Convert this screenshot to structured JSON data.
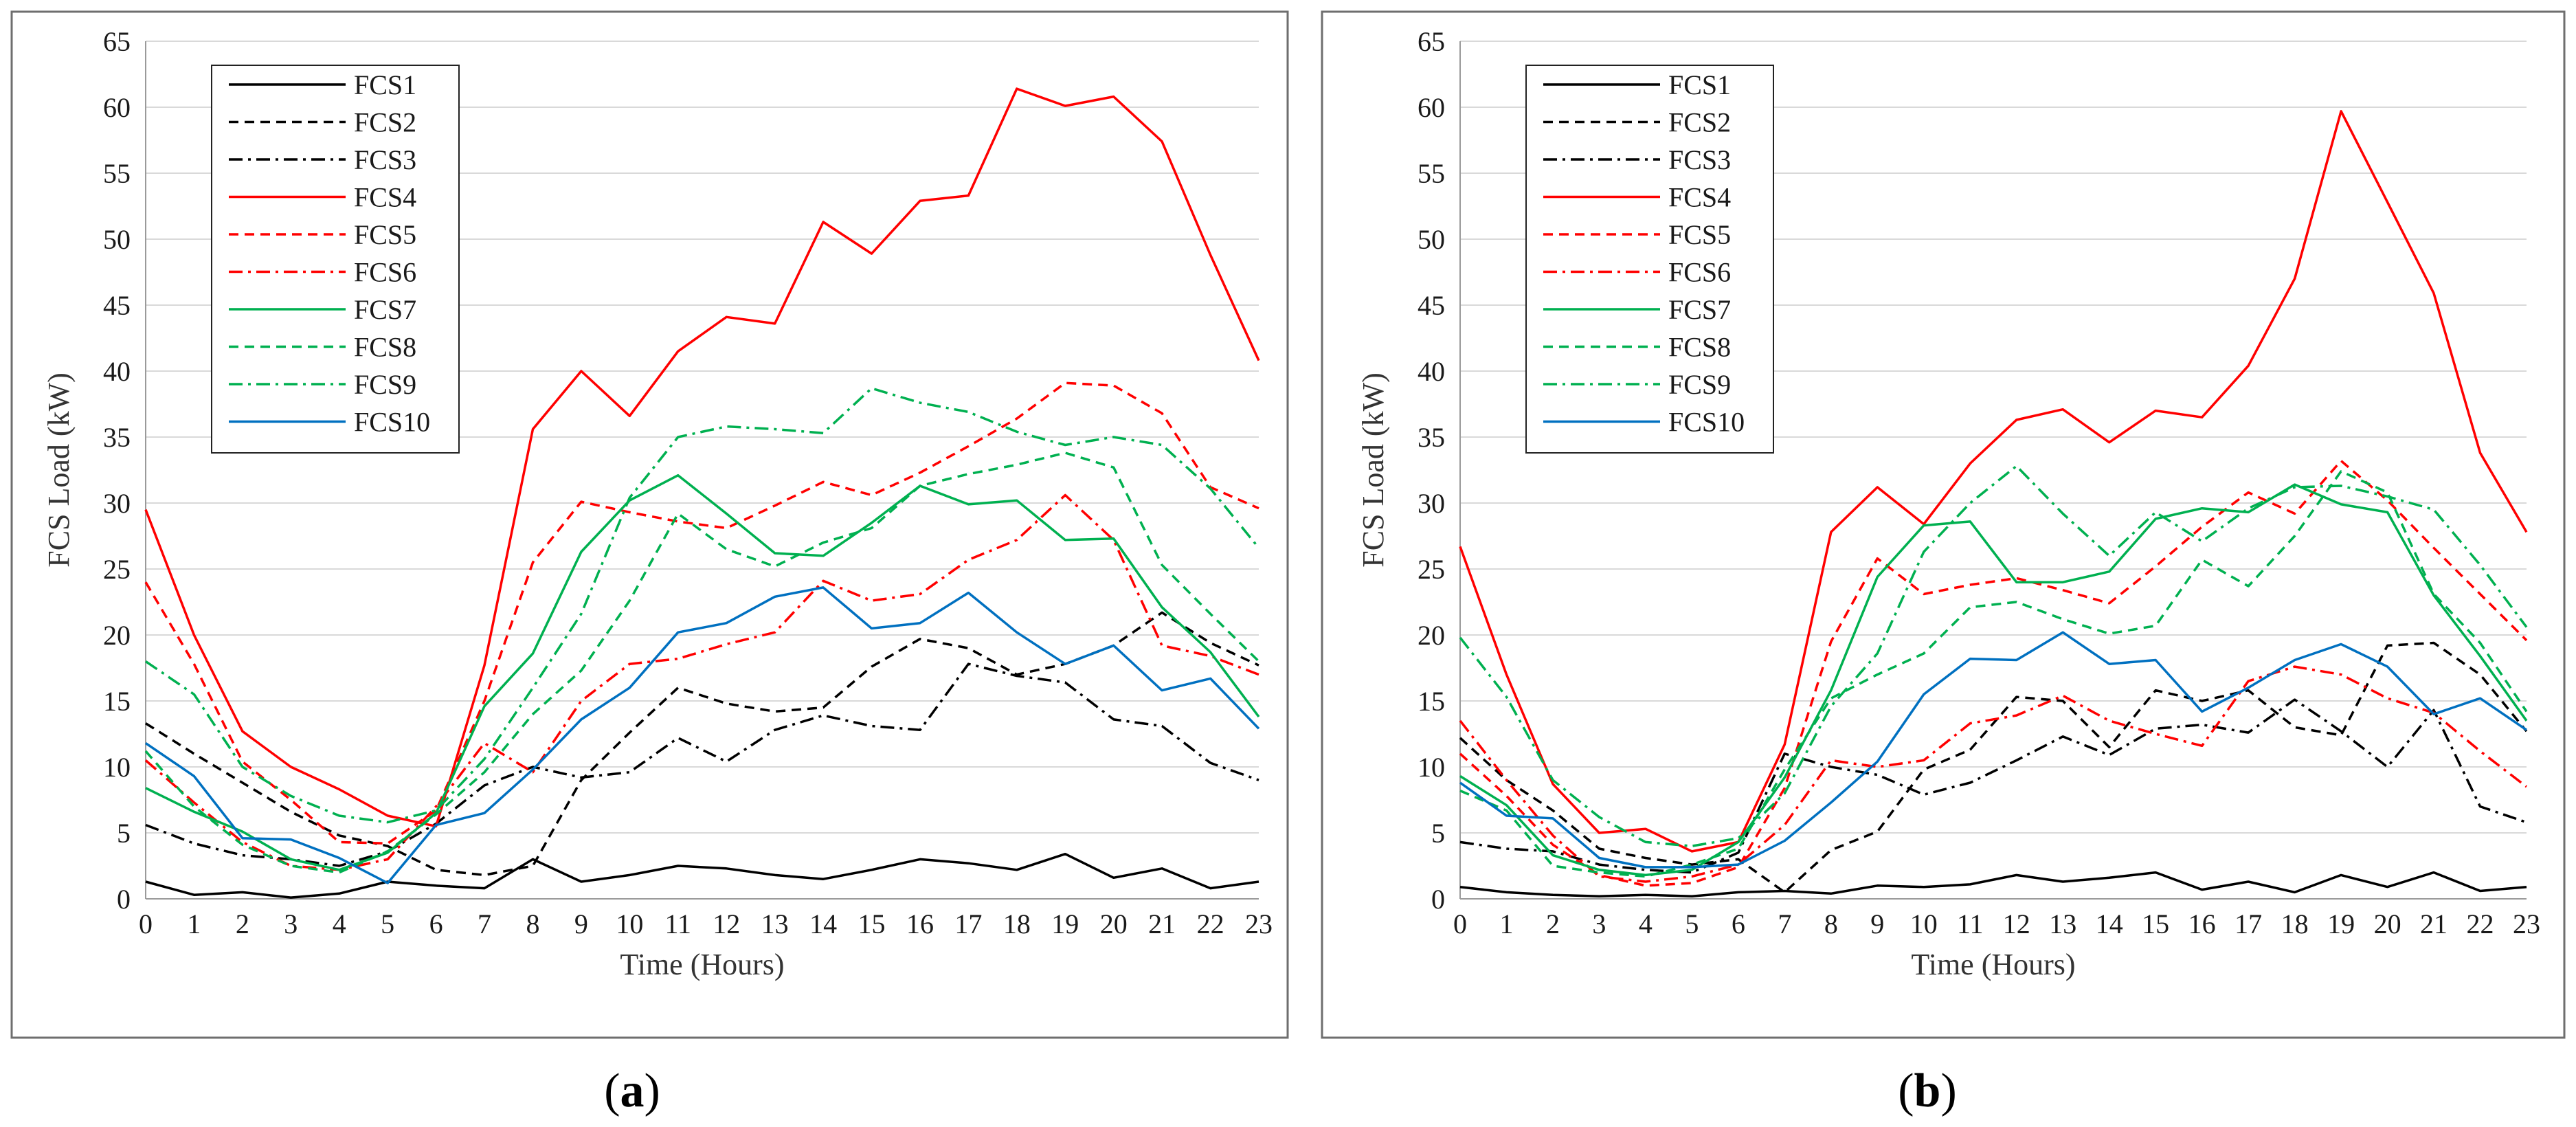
{
  "chart_data": [
    {
      "type": "line",
      "panel_label": "a",
      "xlabel": "Time (Hours)",
      "ylabel": "FCS Load (kW)",
      "x": [
        0,
        1,
        2,
        3,
        4,
        5,
        6,
        7,
        8,
        9,
        10,
        11,
        12,
        13,
        14,
        15,
        16,
        17,
        18,
        19,
        20,
        21,
        22,
        23
      ],
      "xlim": [
        0,
        23
      ],
      "ylim": [
        0,
        65
      ],
      "yticks": [
        0,
        5,
        10,
        15,
        20,
        25,
        30,
        35,
        40,
        45,
        50,
        55,
        60,
        65
      ],
      "grid": "horizontal",
      "legend": "top-left",
      "series": [
        {
          "name": "FCS1",
          "color": "#000000",
          "dash": "solid",
          "values": [
            1.3,
            0.3,
            0.5,
            0.1,
            0.4,
            1.3,
            1.0,
            0.8,
            3.0,
            1.3,
            1.8,
            2.5,
            2.3,
            1.8,
            1.5,
            2.2,
            3.0,
            2.7,
            2.2,
            3.4,
            1.6,
            2.3,
            0.8,
            1.3
          ]
        },
        {
          "name": "FCS2",
          "color": "#000000",
          "dash": "dashed",
          "values": [
            13.3,
            11.0,
            8.8,
            6.6,
            4.8,
            4.0,
            2.2,
            1.8,
            2.5,
            9.0,
            12.6,
            16.0,
            14.8,
            14.2,
            14.5,
            17.6,
            19.7,
            19.0,
            17.0,
            17.8,
            19.2,
            21.7,
            19.4,
            17.7
          ]
        },
        {
          "name": "FCS3",
          "color": "#000000",
          "dash": "dashdot",
          "values": [
            5.6,
            4.2,
            3.3,
            3.0,
            2.5,
            3.6,
            5.7,
            8.6,
            10.0,
            9.2,
            9.6,
            12.2,
            10.4,
            12.8,
            13.9,
            13.1,
            12.8,
            17.8,
            16.9,
            16.4,
            13.6,
            13.1,
            10.3,
            9.0
          ]
        },
        {
          "name": "FCS4",
          "color": "#ff0000",
          "dash": "solid",
          "values": [
            29.5,
            20.0,
            12.7,
            10.0,
            8.3,
            6.3,
            5.5,
            17.7,
            35.6,
            40.0,
            36.6,
            41.5,
            44.1,
            43.6,
            51.3,
            48.9,
            52.9,
            53.3,
            61.4,
            60.1,
            60.8,
            57.4,
            48.8,
            40.8
          ]
        },
        {
          "name": "FCS5",
          "color": "#ff0000",
          "dash": "dashed",
          "values": [
            24.0,
            17.8,
            10.4,
            7.5,
            4.3,
            4.2,
            6.7,
            15.0,
            25.5,
            30.1,
            29.3,
            28.6,
            28.1,
            29.8,
            31.6,
            30.6,
            32.3,
            34.3,
            36.4,
            39.1,
            38.9,
            36.8,
            31.2,
            29.6
          ]
        },
        {
          "name": "FCS6",
          "color": "#ff0000",
          "dash": "dashdot",
          "values": [
            10.5,
            7.3,
            4.3,
            2.5,
            2.2,
            3.0,
            7.0,
            11.8,
            9.6,
            15.0,
            17.8,
            18.2,
            19.3,
            20.2,
            24.1,
            22.6,
            23.1,
            25.7,
            27.2,
            30.6,
            27.2,
            19.2,
            18.4,
            17.0
          ]
        },
        {
          "name": "FCS7",
          "color": "#00b050",
          "dash": "solid",
          "values": [
            8.4,
            6.6,
            5.1,
            3.0,
            2.2,
            3.5,
            6.5,
            14.6,
            18.6,
            26.3,
            30.2,
            32.1,
            29.2,
            26.2,
            26.0,
            28.5,
            31.3,
            29.9,
            30.2,
            27.2,
            27.3,
            22.1,
            18.7,
            13.8
          ]
        },
        {
          "name": "FCS8",
          "color": "#00b050",
          "dash": "dashed",
          "values": [
            11.2,
            7.0,
            4.1,
            2.5,
            2.0,
            3.6,
            6.4,
            9.6,
            14.0,
            17.3,
            22.6,
            29.2,
            26.5,
            25.2,
            27.0,
            28.1,
            31.3,
            32.2,
            32.9,
            33.8,
            32.7,
            25.3,
            21.6,
            18.0
          ]
        },
        {
          "name": "FCS9",
          "color": "#00b050",
          "dash": "dashdot",
          "values": [
            18.0,
            15.5,
            10.0,
            7.8,
            6.3,
            5.8,
            6.7,
            10.6,
            16.0,
            21.6,
            30.4,
            35.0,
            35.8,
            35.6,
            35.3,
            38.7,
            37.6,
            36.9,
            35.4,
            34.4,
            35.0,
            34.4,
            31.1,
            26.6
          ]
        },
        {
          "name": "FCS10",
          "color": "#0070c0",
          "dash": "solid",
          "values": [
            11.8,
            9.3,
            4.6,
            4.5,
            3.1,
            1.2,
            5.6,
            6.5,
            9.8,
            13.6,
            16.0,
            20.2,
            20.9,
            22.9,
            23.6,
            20.5,
            20.9,
            23.2,
            20.2,
            17.8,
            19.2,
            15.8,
            16.7,
            12.9
          ]
        }
      ]
    },
    {
      "type": "line",
      "panel_label": "b",
      "xlabel": "Time (Hours)",
      "ylabel": "FCS Load (kW)",
      "x": [
        0,
        1,
        2,
        3,
        4,
        5,
        6,
        7,
        8,
        9,
        10,
        11,
        12,
        13,
        14,
        15,
        16,
        17,
        18,
        19,
        20,
        21,
        22,
        23
      ],
      "xlim": [
        0,
        23
      ],
      "ylim": [
        0,
        65
      ],
      "yticks": [
        0,
        5,
        10,
        15,
        20,
        25,
        30,
        35,
        40,
        45,
        50,
        55,
        60,
        65
      ],
      "grid": "horizontal",
      "legend": "top-left",
      "series": [
        {
          "name": "FCS1",
          "color": "#000000",
          "dash": "solid",
          "values": [
            0.9,
            0.5,
            0.3,
            0.2,
            0.3,
            0.2,
            0.5,
            0.6,
            0.4,
            1.0,
            0.9,
            1.1,
            1.8,
            1.3,
            1.6,
            2.0,
            0.7,
            1.3,
            0.5,
            1.8,
            0.9,
            2.0,
            0.6,
            0.9
          ]
        },
        {
          "name": "FCS2",
          "color": "#000000",
          "dash": "dashed",
          "values": [
            12.2,
            9.0,
            6.7,
            3.8,
            3.1,
            2.6,
            3.0,
            0.5,
            3.7,
            5.1,
            9.8,
            11.3,
            15.3,
            15.0,
            11.5,
            15.8,
            15.0,
            15.8,
            13.0,
            12.4,
            19.2,
            19.4,
            17.0,
            12.7
          ]
        },
        {
          "name": "FCS3",
          "color": "#000000",
          "dash": "dashdot",
          "values": [
            4.3,
            3.8,
            3.6,
            2.6,
            2.2,
            2.0,
            3.5,
            11.0,
            10.0,
            9.4,
            7.9,
            8.8,
            10.5,
            12.3,
            10.9,
            12.9,
            13.2,
            12.6,
            15.1,
            12.7,
            10.0,
            14.3,
            7.0,
            5.8
          ]
        },
        {
          "name": "FCS4",
          "color": "#ff0000",
          "dash": "solid",
          "values": [
            26.7,
            17.0,
            8.7,
            5.0,
            5.3,
            3.6,
            4.3,
            11.7,
            27.8,
            31.2,
            28.4,
            33.0,
            36.3,
            37.1,
            34.6,
            37.0,
            36.5,
            40.4,
            47.0,
            59.7,
            52.8,
            45.9,
            33.8,
            27.8
          ]
        },
        {
          "name": "FCS5",
          "color": "#ff0000",
          "dash": "dashed",
          "values": [
            11.0,
            7.8,
            4.1,
            1.8,
            1.0,
            1.2,
            2.4,
            8.4,
            19.5,
            25.8,
            23.1,
            23.8,
            24.3,
            23.4,
            22.4,
            25.2,
            28.2,
            30.8,
            29.2,
            33.2,
            30.2,
            26.6,
            23.1,
            19.6
          ]
        },
        {
          "name": "FCS6",
          "color": "#ff0000",
          "dash": "dashdot",
          "values": [
            13.5,
            9.0,
            4.8,
            1.7,
            1.3,
            1.7,
            2.6,
            5.6,
            10.5,
            10.0,
            10.5,
            13.3,
            13.9,
            15.4,
            13.5,
            12.5,
            11.6,
            16.5,
            17.6,
            17.0,
            15.2,
            14.1,
            11.2,
            8.5
          ]
        },
        {
          "name": "FCS7",
          "color": "#00b050",
          "dash": "solid",
          "values": [
            9.3,
            7.1,
            3.3,
            2.2,
            1.8,
            2.2,
            4.3,
            9.2,
            15.8,
            24.4,
            28.3,
            28.6,
            24.0,
            24.0,
            24.8,
            28.8,
            29.6,
            29.3,
            31.4,
            29.9,
            29.3,
            23.0,
            18.4,
            13.5
          ]
        },
        {
          "name": "FCS8",
          "color": "#00b050",
          "dash": "dashed",
          "values": [
            8.2,
            6.7,
            2.5,
            2.0,
            1.7,
            2.6,
            3.8,
            9.8,
            15.2,
            17.0,
            18.6,
            22.1,
            22.5,
            21.2,
            20.1,
            20.7,
            25.7,
            23.7,
            27.5,
            32.4,
            30.8,
            23.1,
            19.4,
            14.2
          ]
        },
        {
          "name": "FCS9",
          "color": "#00b050",
          "dash": "dashdot",
          "values": [
            19.8,
            15.3,
            9.0,
            6.2,
            4.3,
            4.0,
            4.6,
            8.0,
            14.6,
            18.6,
            26.3,
            30.0,
            32.8,
            29.2,
            26.0,
            29.3,
            27.1,
            29.6,
            31.2,
            31.3,
            30.5,
            29.5,
            25.3,
            20.6
          ]
        },
        {
          "name": "FCS10",
          "color": "#0070c0",
          "dash": "solid",
          "values": [
            8.8,
            6.3,
            6.1,
            3.1,
            2.4,
            2.4,
            2.6,
            4.4,
            7.3,
            10.4,
            15.5,
            18.2,
            18.1,
            20.2,
            17.8,
            18.1,
            14.2,
            16.0,
            18.1,
            19.3,
            17.6,
            14.0,
            15.2,
            12.8
          ]
        }
      ]
    }
  ]
}
